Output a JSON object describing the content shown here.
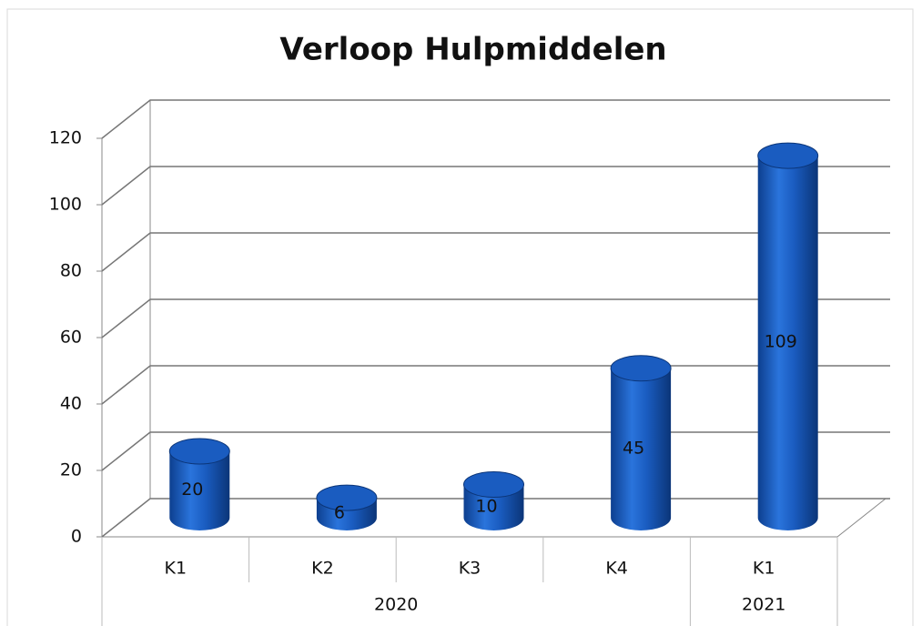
{
  "chart_data": {
    "type": "bar",
    "title": "Verloop Hulpmiddelen",
    "categories": [
      "K1",
      "K2",
      "K3",
      "K4",
      "K1"
    ],
    "category_groups": [
      {
        "label": "2020",
        "count": 4
      },
      {
        "label": "2021",
        "count": 1
      }
    ],
    "values": [
      20,
      6,
      10,
      45,
      109
    ],
    "color": "#1a5cc0",
    "ylim": [
      0,
      120
    ],
    "yticks": [
      0,
      20,
      40,
      60,
      80,
      100,
      120
    ],
    "grid": true
  }
}
